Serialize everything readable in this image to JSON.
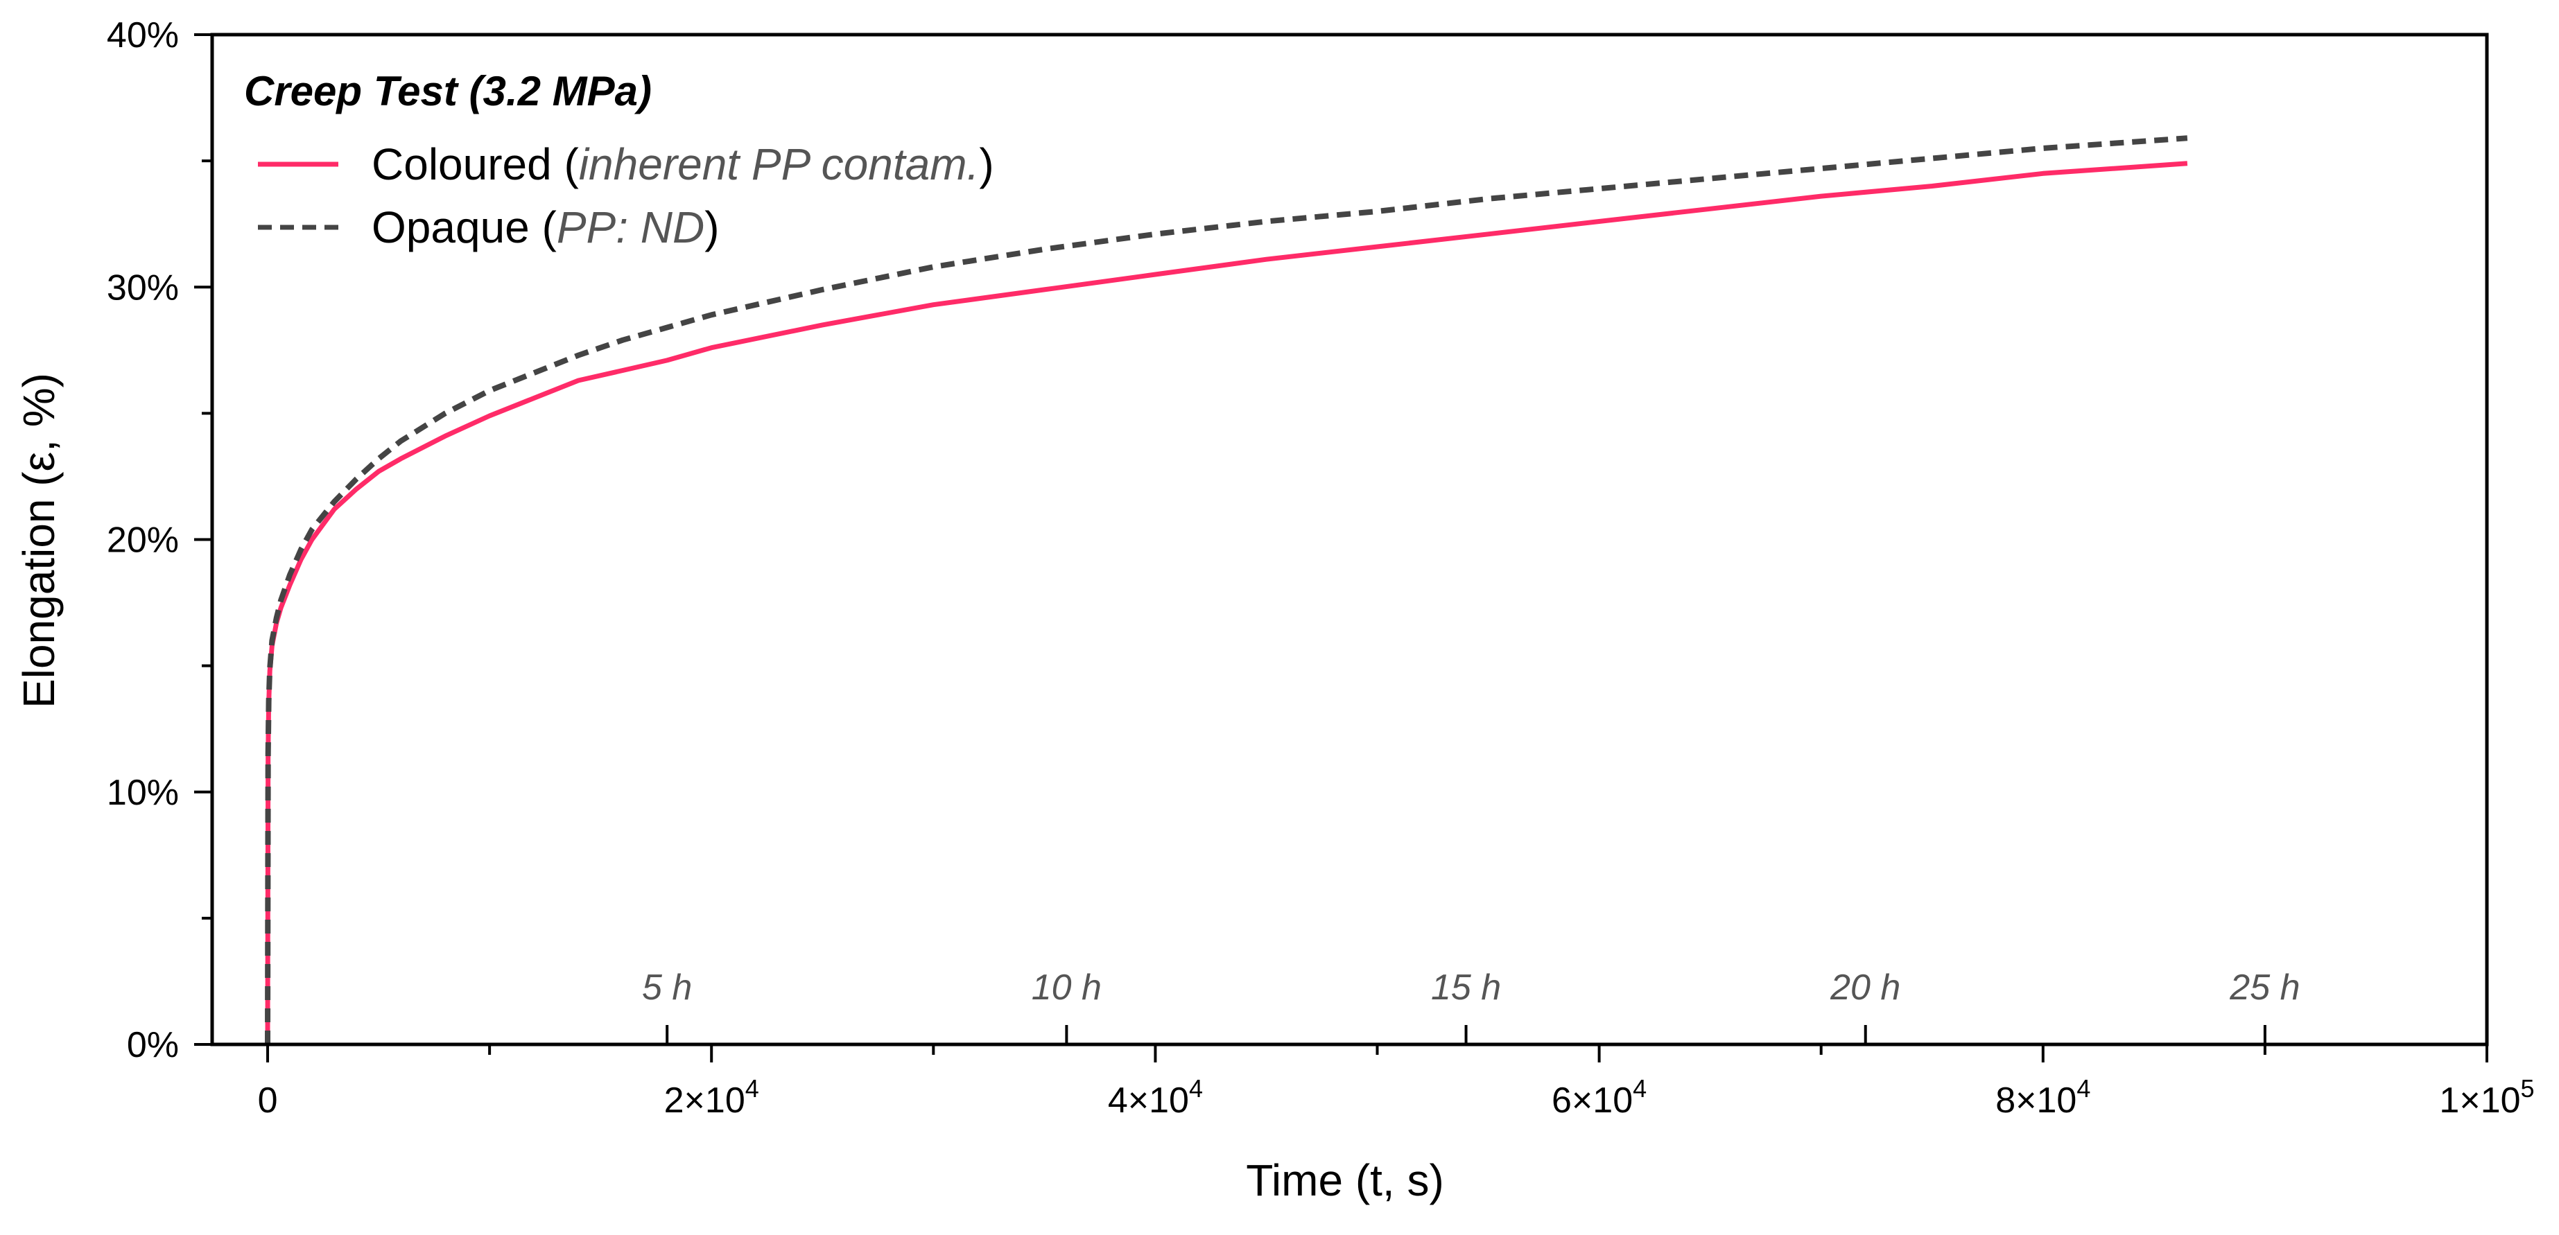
{
  "chart_data": {
    "type": "line",
    "title": "Creep Test (3.2 MPa)",
    "xlabel": "Time (t, s)",
    "ylabel": "Elongation (ε, %)",
    "xlim": [
      -2500,
      100000
    ],
    "ylim": [
      0,
      40
    ],
    "x_ticks": [
      {
        "value": 0,
        "base": "0",
        "exp": ""
      },
      {
        "value": 20000,
        "base": "2×10",
        "exp": "4"
      },
      {
        "value": 40000,
        "base": "4×10",
        "exp": "4"
      },
      {
        "value": 60000,
        "base": "6×10",
        "exp": "4"
      },
      {
        "value": 80000,
        "base": "8×10",
        "exp": "4"
      },
      {
        "value": 100000,
        "base": "1×10",
        "exp": "5"
      }
    ],
    "x_minor_ticks": [
      10000,
      30000,
      50000,
      70000,
      90000
    ],
    "y_ticks": [
      {
        "value": 0,
        "label": "0%"
      },
      {
        "value": 10,
        "label": "10%"
      },
      {
        "value": 20,
        "label": "20%"
      },
      {
        "value": 30,
        "label": "30%"
      },
      {
        "value": 40,
        "label": "40%"
      }
    ],
    "y_minor_ticks": [
      5,
      15,
      25,
      35
    ],
    "hour_markers": [
      {
        "value": 18000,
        "label": "5 h"
      },
      {
        "value": 36000,
        "label": "10 h"
      },
      {
        "value": 54000,
        "label": "15 h"
      },
      {
        "value": 72000,
        "label": "20 h"
      },
      {
        "value": 90000,
        "label": "25 h"
      }
    ],
    "legend_position": "top-left",
    "series": [
      {
        "name": "Coloured",
        "note": "inherent PP contam.",
        "color": "#ff2b68",
        "style": "solid",
        "x": [
          0,
          20,
          50,
          100,
          200,
          400,
          600,
          1000,
          1500,
          2000,
          3000,
          4000,
          5000,
          6000,
          8000,
          10000,
          12000,
          14000,
          16000,
          18000,
          20000,
          25000,
          30000,
          35000,
          40000,
          45000,
          50000,
          55000,
          60000,
          65000,
          70000,
          75000,
          80000,
          86500
        ],
        "y": [
          0,
          11.5,
          13.5,
          14.8,
          15.8,
          16.7,
          17.3,
          18.2,
          19.2,
          20.0,
          21.2,
          22.0,
          22.7,
          23.2,
          24.1,
          24.9,
          25.6,
          26.3,
          26.7,
          27.1,
          27.6,
          28.5,
          29.3,
          29.9,
          30.5,
          31.1,
          31.6,
          32.1,
          32.6,
          33.1,
          33.6,
          34.0,
          34.5,
          34.9
        ]
      },
      {
        "name": "Opaque",
        "note": "PP: ND",
        "color": "#444444",
        "style": "dashed",
        "x": [
          0,
          20,
          50,
          100,
          200,
          400,
          600,
          1000,
          1500,
          2000,
          3000,
          4000,
          5000,
          6000,
          8000,
          10000,
          12000,
          14000,
          16000,
          18000,
          20000,
          25000,
          30000,
          35000,
          40000,
          45000,
          50000,
          55000,
          60000,
          65000,
          70000,
          75000,
          80000,
          86500
        ],
        "y": [
          0,
          11.5,
          13.6,
          14.9,
          16.0,
          16.9,
          17.6,
          18.6,
          19.6,
          20.4,
          21.5,
          22.4,
          23.2,
          23.9,
          25.0,
          25.9,
          26.6,
          27.3,
          27.9,
          28.4,
          28.9,
          29.9,
          30.8,
          31.5,
          32.1,
          32.6,
          33.0,
          33.5,
          33.9,
          34.3,
          34.7,
          35.1,
          35.5,
          35.9
        ]
      }
    ]
  }
}
